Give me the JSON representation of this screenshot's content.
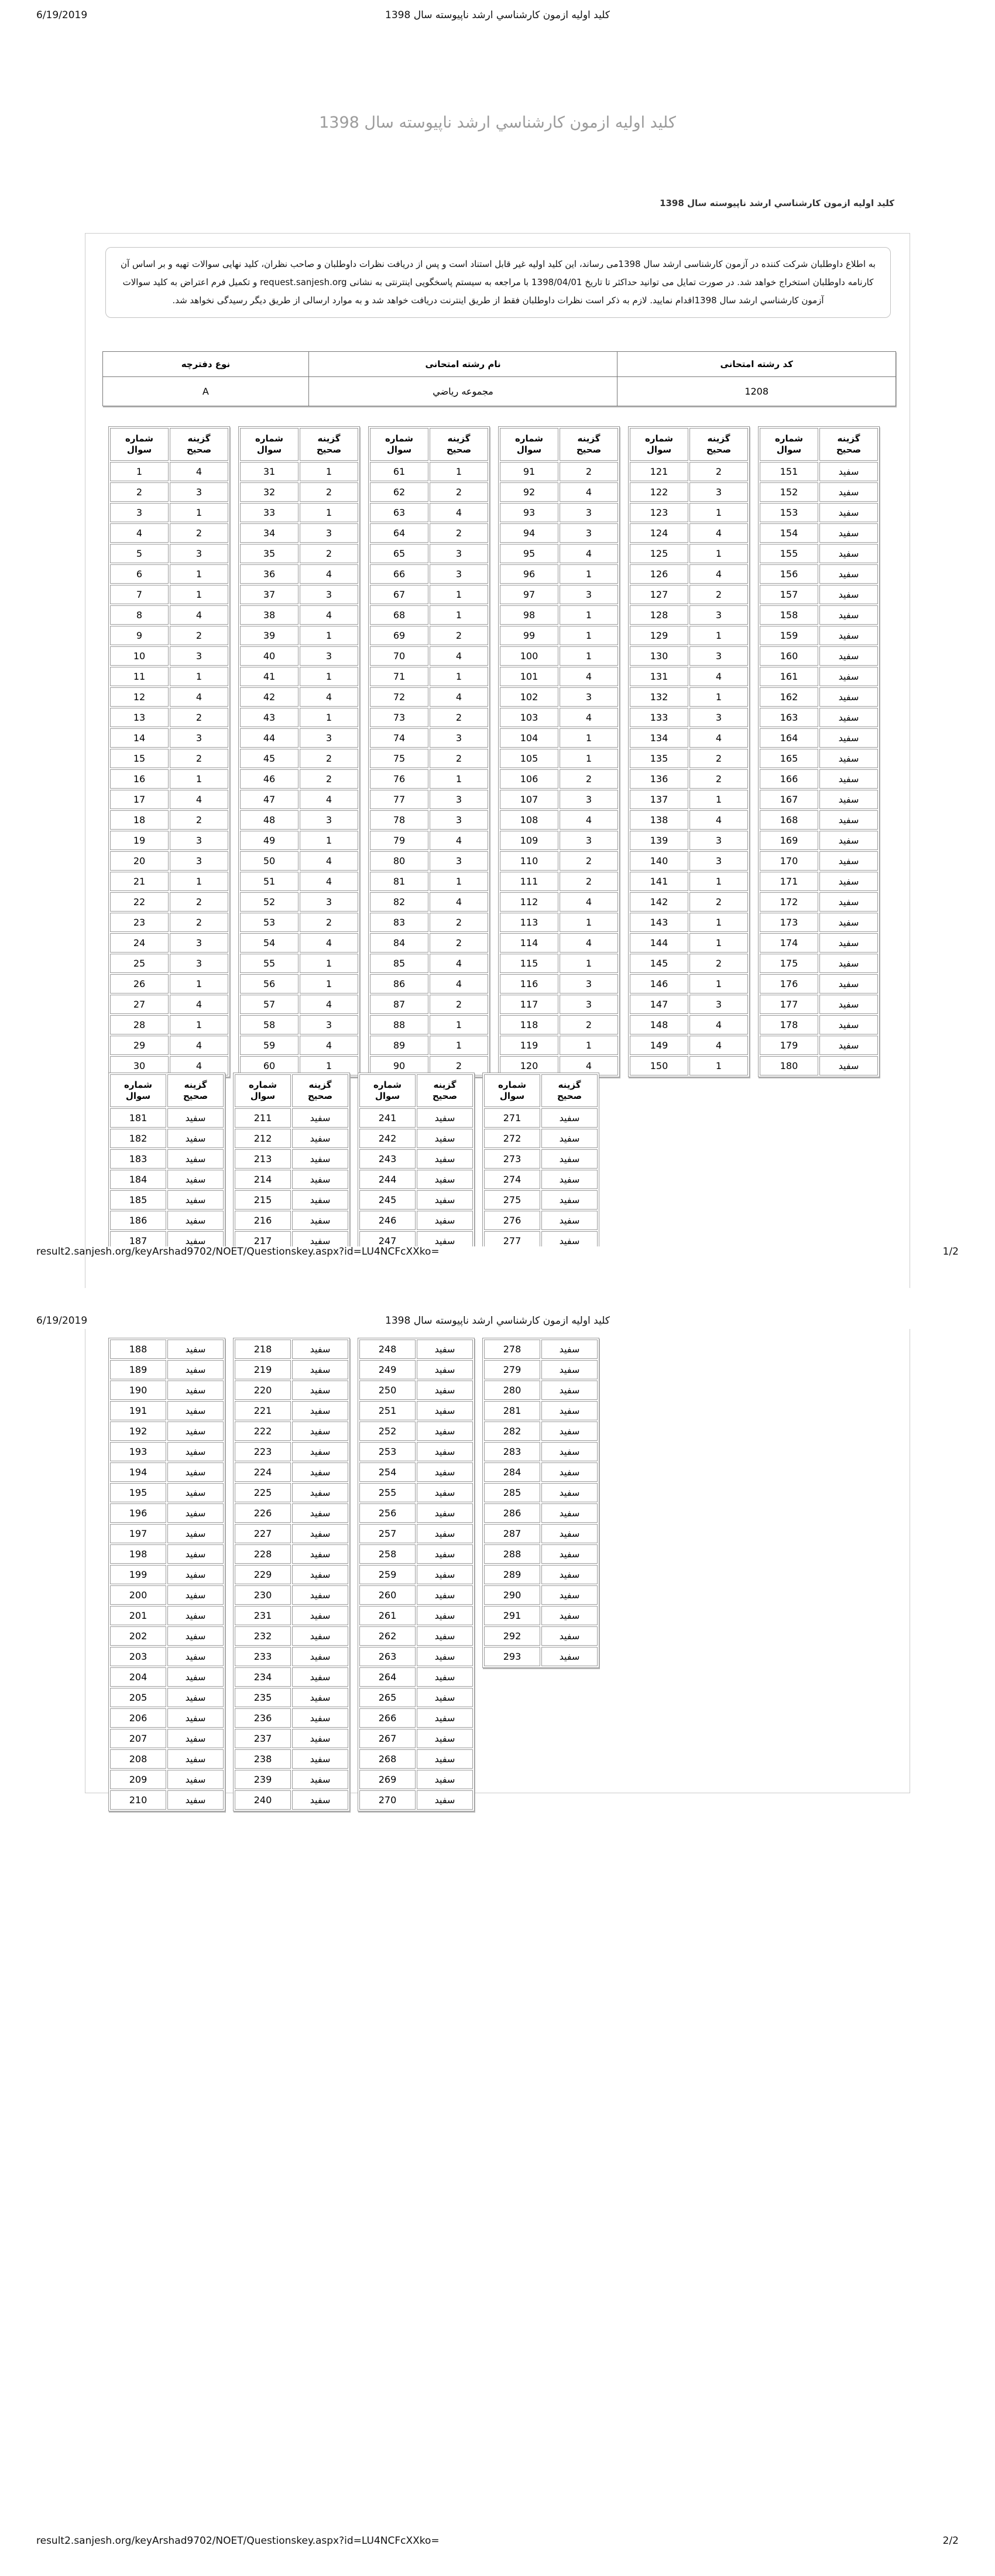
{
  "print": {
    "date": "6/19/2019",
    "header_title": "کلید اولیه ازمون کارشناسي ارشد ناپیوسته سال 1398",
    "url": "result2.sanjesh.org/keyArshad9702/NOET/Questionskey.aspx?id=LU4NCFcXXko=",
    "page_indicator_1": "1/2",
    "page_indicator_2": "2/2"
  },
  "content": {
    "main_title": "کلید اولیه ازمون کارشناسي ارشد ناپیوسته سال 1398",
    "section_title": "کلید اولیه ازمون کارشناسي ارشد ناپیوسته سال 1398",
    "notice": "به اطلاع داوطلبان شرکت کننده در آزمون کارشناسی ارشد سال 1398می رساند، این کلید اولیه غیر قابل استناد است و پس از دریافت نظرات داوطلبان و صاحب نظران، کلید نهایی سوالات تهیه و بر اساس آن کارنامه داوطلبان استخراج خواهد شد. در صورت تمایل می توانید حداکثر تا تاریخ 1398/04/01 با مراجعه به سیستم پاسخگویی اینترنتی به نشانی request.sanjesh.org و تکمیل فرم اعتراض به کلید سوالات آزمون کارشناسي ارشد سال 1398اقدام نمایید. لازم به ذکر است نظرات داوطلبان فقط از طریق اینترنت دریافت خواهد شد و به موارد ارسالی از طریق دیگر رسیدگی نخواهد شد."
  },
  "info_table": {
    "headers": [
      "کد رشته امتحانی",
      "نام رشته امتحانی",
      "نوع دفترچه"
    ],
    "values": [
      "1208",
      "مجموعه ریاضي",
      "A"
    ]
  },
  "answer_key": {
    "col_question": "شماره سوال",
    "col_answer": "گزینه صحیح",
    "blank_label": "سفید",
    "table2_rows_on_page1": 7,
    "table1_groups": [
      {
        "start": 1,
        "answers": [
          "4",
          "3",
          "1",
          "2",
          "3",
          "1",
          "1",
          "4",
          "2",
          "3",
          "1",
          "4",
          "2",
          "3",
          "2",
          "1",
          "4",
          "2",
          "3",
          "3",
          "1",
          "2",
          "2",
          "3",
          "3",
          "1",
          "4",
          "1",
          "4",
          "4"
        ]
      },
      {
        "start": 31,
        "answers": [
          "1",
          "2",
          "1",
          "3",
          "2",
          "4",
          "3",
          "4",
          "1",
          "3",
          "1",
          "4",
          "1",
          "3",
          "2",
          "2",
          "4",
          "3",
          "1",
          "4",
          "4",
          "3",
          "2",
          "4",
          "1",
          "1",
          "4",
          "3",
          "4",
          "1"
        ]
      },
      {
        "start": 61,
        "answers": [
          "1",
          "2",
          "4",
          "2",
          "3",
          "3",
          "1",
          "1",
          "2",
          "4",
          "1",
          "4",
          "2",
          "3",
          "2",
          "1",
          "3",
          "3",
          "4",
          "3",
          "1",
          "4",
          "2",
          "2",
          "4",
          "4",
          "2",
          "1",
          "1",
          "2"
        ]
      },
      {
        "start": 91,
        "answers": [
          "2",
          "4",
          "3",
          "3",
          "4",
          "1",
          "3",
          "1",
          "1",
          "1",
          "4",
          "3",
          "4",
          "1",
          "1",
          "2",
          "3",
          "4",
          "3",
          "2",
          "2",
          "4",
          "1",
          "4",
          "1",
          "3",
          "3",
          "2",
          "1",
          "4"
        ]
      },
      {
        "start": 121,
        "answers": [
          "2",
          "3",
          "1",
          "4",
          "1",
          "4",
          "2",
          "3",
          "1",
          "3",
          "4",
          "1",
          "3",
          "4",
          "2",
          "2",
          "1",
          "4",
          "3",
          "3",
          "1",
          "2",
          "1",
          "1",
          "2",
          "1",
          "3",
          "4",
          "4",
          "1"
        ]
      },
      {
        "start": 151,
        "answers": [
          "سفید",
          "سفید",
          "سفید",
          "سفید",
          "سفید",
          "سفید",
          "سفید",
          "سفید",
          "سفید",
          "سفید",
          "سفید",
          "سفید",
          "سفید",
          "سفید",
          "سفید",
          "سفید",
          "سفید",
          "سفید",
          "سفید",
          "سفید",
          "سفید",
          "سفید",
          "سفید",
          "سفید",
          "سفید",
          "سفید",
          "سفید",
          "سفید",
          "سفید",
          "سفید"
        ]
      }
    ],
    "table2_groups": [
      {
        "start": 181,
        "answers": [
          "سفید",
          "سفید",
          "سفید",
          "سفید",
          "سفید",
          "سفید",
          "سفید",
          "سفید",
          "سفید",
          "سفید",
          "سفید",
          "سفید",
          "سفید",
          "سفید",
          "سفید",
          "سفید",
          "سفید",
          "سفید",
          "سفید",
          "سفید",
          "سفید",
          "سفید",
          "سفید",
          "سفید",
          "سفید",
          "سفید",
          "سفید",
          "سفید",
          "سفید",
          "سفید"
        ]
      },
      {
        "start": 211,
        "answers": [
          "سفید",
          "سفید",
          "سفید",
          "سفید",
          "سفید",
          "سفید",
          "سفید",
          "سفید",
          "سفید",
          "سفید",
          "سفید",
          "سفید",
          "سفید",
          "سفید",
          "سفید",
          "سفید",
          "سفید",
          "سفید",
          "سفید",
          "سفید",
          "سفید",
          "سفید",
          "سفید",
          "سفید",
          "سفید",
          "سفید",
          "سفید",
          "سفید",
          "سفید",
          "سفید"
        ]
      },
      {
        "start": 241,
        "answers": [
          "سفید",
          "سفید",
          "سفید",
          "سفید",
          "سفید",
          "سفید",
          "سفید",
          "سفید",
          "سفید",
          "سفید",
          "سفید",
          "سفید",
          "سفید",
          "سفید",
          "سفید",
          "سفید",
          "سفید",
          "سفید",
          "سفید",
          "سفید",
          "سفید",
          "سفید",
          "سفید",
          "سفید",
          "سفید",
          "سفید",
          "سفید",
          "سفید",
          "سفید",
          "سفید"
        ]
      },
      {
        "start": 271,
        "answers": [
          "سفید",
          "سفید",
          "سفید",
          "سفید",
          "سفید",
          "سفید",
          "سفید",
          "سفید",
          "سفید",
          "سفید",
          "سفید",
          "سفید",
          "سفید",
          "سفید",
          "سفید",
          "سفید",
          "سفید",
          "سفید",
          "سفید",
          "سفید",
          "سفید",
          "سفید",
          "سفید"
        ]
      }
    ]
  }
}
